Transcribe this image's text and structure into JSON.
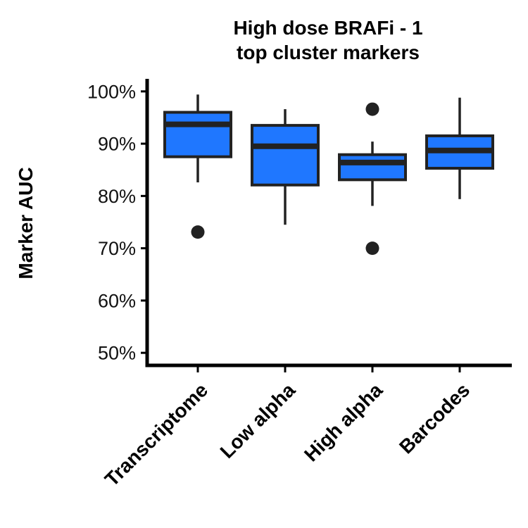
{
  "chart_data": {
    "type": "box",
    "title_lines": [
      "High dose BRAFi - 1",
      "top cluster markers"
    ],
    "ylabel": "Marker AUC",
    "xlabel": "",
    "ylim": [
      0.476,
      1.024
    ],
    "yticks": [
      {
        "value": 0.5,
        "label": "50%"
      },
      {
        "value": 0.6,
        "label": "60%"
      },
      {
        "value": 0.7,
        "label": "70%"
      },
      {
        "value": 0.8,
        "label": "80%"
      },
      {
        "value": 0.9,
        "label": "90%"
      },
      {
        "value": 1.0,
        "label": "100%"
      }
    ],
    "categories": [
      "Transcriptome",
      "Low alpha",
      "High alpha",
      "Barcodes"
    ],
    "boxes": [
      {
        "category": "Transcriptome",
        "whisker_low": 0.826,
        "q1": 0.875,
        "median": 0.937,
        "q3": 0.96,
        "whisker_high": 0.994,
        "outliers": [
          0.731
        ]
      },
      {
        "category": "Low alpha",
        "whisker_low": 0.745,
        "q1": 0.821,
        "median": 0.895,
        "q3": 0.935,
        "whisker_high": 0.966,
        "outliers": []
      },
      {
        "category": "High alpha",
        "whisker_low": 0.781,
        "q1": 0.831,
        "median": 0.864,
        "q3": 0.879,
        "whisker_high": 0.904,
        "outliers": [
          0.966,
          0.7
        ]
      },
      {
        "category": "Barcodes",
        "whisker_low": 0.794,
        "q1": 0.853,
        "median": 0.887,
        "q3": 0.915,
        "whisker_high": 0.988,
        "outliers": []
      }
    ],
    "grid": false,
    "legend": "none",
    "box_fill": "#1f77ff",
    "box_stroke": "#222222",
    "axis_color": "#000000"
  }
}
